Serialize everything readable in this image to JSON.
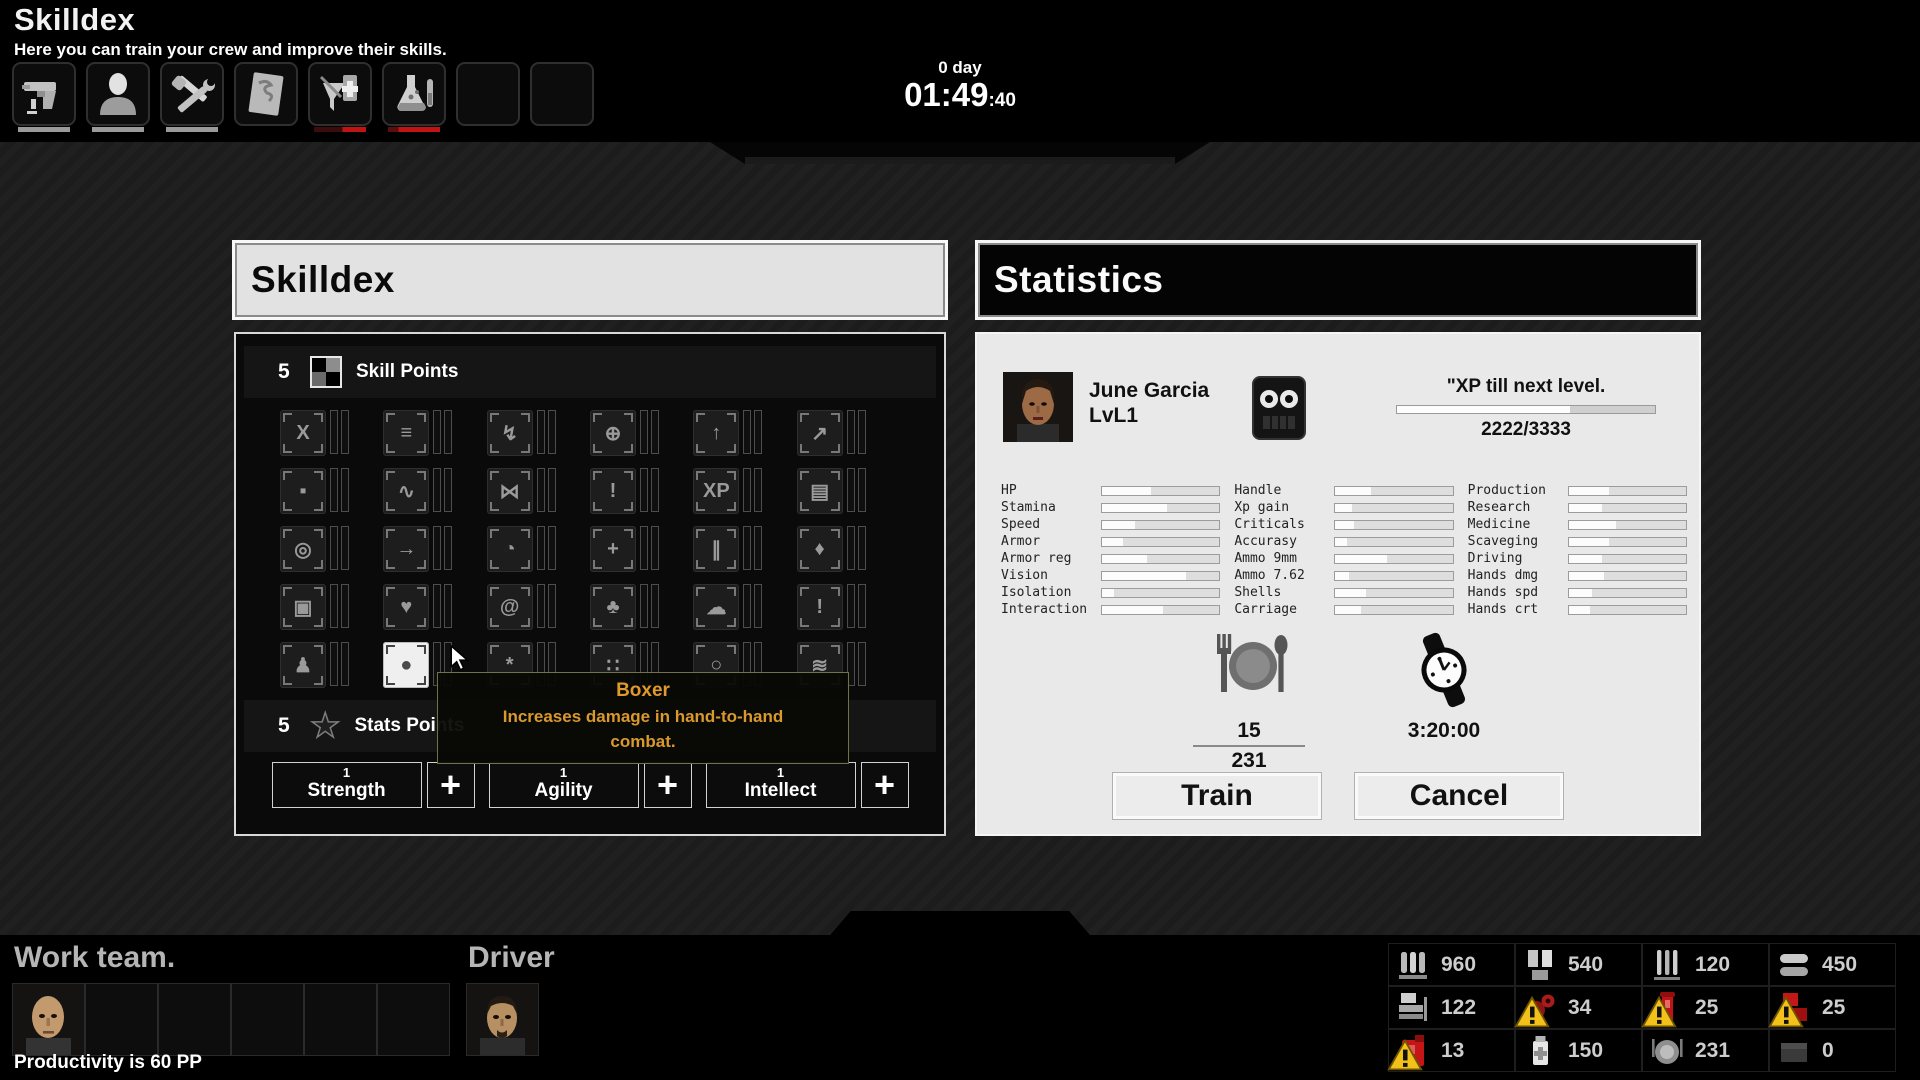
{
  "page": {
    "title": "Skilldex",
    "subtitle": "Here you can train your crew and improve their skills."
  },
  "clock": {
    "day": "0 day",
    "time": "01:49",
    "seconds": ":40"
  },
  "toolbar": {
    "slots": [
      "weapons",
      "crew",
      "workshop",
      "map",
      "medical",
      "chemistry",
      "empty-1",
      "empty-2"
    ]
  },
  "skilldex": {
    "title": "Skilldex",
    "skill_points": {
      "value": "5",
      "label": "Skill Points"
    },
    "stats_points": {
      "value": "5",
      "label": "Stats Points"
    },
    "tiles": [
      {
        "name": "muscle",
        "glyph": "X",
        "hovered": false
      },
      {
        "name": "stack",
        "glyph": "≡",
        "hovered": false
      },
      {
        "name": "sprint",
        "glyph": "↯",
        "hovered": false
      },
      {
        "name": "scope",
        "glyph": "⊕",
        "hovered": false
      },
      {
        "name": "climb",
        "glyph": "↑",
        "hovered": false
      },
      {
        "name": "throw",
        "glyph": "↗",
        "hovered": false
      },
      {
        "name": "melee",
        "glyph": "▪",
        "hovered": false
      },
      {
        "name": "whip",
        "glyph": "∿",
        "hovered": false
      },
      {
        "name": "wrestling",
        "glyph": "⋈",
        "hovered": false
      },
      {
        "name": "alert",
        "glyph": "!",
        "hovered": false
      },
      {
        "name": "xp-gain",
        "glyph": "XP",
        "hovered": false
      },
      {
        "name": "supply",
        "glyph": "▤",
        "hovered": false
      },
      {
        "name": "focus",
        "glyph": "◎",
        "hovered": false
      },
      {
        "name": "dash",
        "glyph": "→",
        "hovered": false
      },
      {
        "name": "reaction",
        "glyph": "◔",
        "hovered": false
      },
      {
        "name": "medic",
        "glyph": "+",
        "hovered": false
      },
      {
        "name": "dual-wield",
        "glyph": "∥",
        "hovered": false
      },
      {
        "name": "chemistry",
        "glyph": "♦",
        "hovered": false
      },
      {
        "name": "shield",
        "glyph": "▣",
        "hovered": false
      },
      {
        "name": "heart",
        "glyph": "♥",
        "hovered": false
      },
      {
        "name": "spiral",
        "glyph": "@",
        "hovered": false
      },
      {
        "name": "nature",
        "glyph": "♣",
        "hovered": false
      },
      {
        "name": "mind",
        "glyph": "☁",
        "hovered": false
      },
      {
        "name": "danger",
        "glyph": "!",
        "hovered": false
      },
      {
        "name": "scout",
        "glyph": "♟",
        "hovered": false
      },
      {
        "name": "boxer",
        "glyph": "●",
        "hovered": true
      },
      {
        "name": "craft",
        "glyph": "*",
        "hovered": false
      },
      {
        "name": "domino",
        "glyph": "∷",
        "hovered": false
      },
      {
        "name": "endurance",
        "glyph": "○",
        "hovered": false
      },
      {
        "name": "camouflage",
        "glyph": "≋",
        "hovered": false
      }
    ],
    "attributes": [
      {
        "value": "1",
        "label": "Strength"
      },
      {
        "value": "1",
        "label": "Agility"
      },
      {
        "value": "1",
        "label": "Intellect"
      }
    ],
    "plus": "+"
  },
  "tooltip": {
    "title": "Boxer",
    "line1": "Increases damage in hand-to-hand",
    "line2": "combat."
  },
  "statistics": {
    "title": "Statistics",
    "character": {
      "name": "June Garcia",
      "level": "LvL1"
    },
    "xp": {
      "label": "\"XP till next level.",
      "value": "2222/3333",
      "percent": 67
    },
    "columns": [
      [
        {
          "label": "HP",
          "pct": 42
        },
        {
          "label": "Stamina",
          "pct": 55
        },
        {
          "label": "Speed",
          "pct": 28
        },
        {
          "label": "Armor",
          "pct": 18
        },
        {
          "label": "Armor reg",
          "pct": 38
        },
        {
          "label": "Vision",
          "pct": 72
        },
        {
          "label": "Isolation",
          "pct": 10
        },
        {
          "label": "Interaction",
          "pct": 52
        }
      ],
      [
        {
          "label": "Handle",
          "pct": 30
        },
        {
          "label": "Xp gain",
          "pct": 14
        },
        {
          "label": "Criticals",
          "pct": 16
        },
        {
          "label": "Accurasy",
          "pct": 10
        },
        {
          "label": "Ammo 9mm",
          "pct": 44
        },
        {
          "label": "Ammo 7.62",
          "pct": 12
        },
        {
          "label": "Shells",
          "pct": 26
        },
        {
          "label": "Carriage",
          "pct": 22
        }
      ],
      [
        {
          "label": "Production",
          "pct": 34
        },
        {
          "label": "Research",
          "pct": 28
        },
        {
          "label": "Medicine",
          "pct": 40
        },
        {
          "label": "Scaveging",
          "pct": 34
        },
        {
          "label": "Driving",
          "pct": 28
        },
        {
          "label": "Hands dmg",
          "pct": 30
        },
        {
          "label": "Hands spd",
          "pct": 20
        },
        {
          "label": "Hands crt",
          "pct": 18
        }
      ]
    ],
    "food": {
      "current": "15",
      "total": "231"
    },
    "duration": "3:20:00",
    "buttons": {
      "train": "Train",
      "cancel": "Cancel"
    }
  },
  "bottom": {
    "work_team": {
      "title": "Work team.",
      "productivity": "Productivity is 60 PP"
    },
    "driver": {
      "title": "Driver"
    },
    "resources": [
      {
        "icon": "ammo-9mm",
        "value": "960",
        "warning": false
      },
      {
        "icon": "pistol-mags",
        "value": "540",
        "warning": false
      },
      {
        "icon": "rifle-rounds",
        "value": "120",
        "warning": false
      },
      {
        "icon": "ammo-belts",
        "value": "450",
        "warning": false
      },
      {
        "icon": "workbench",
        "value": "122",
        "warning": false
      },
      {
        "icon": "gears",
        "value": "34",
        "warning": true
      },
      {
        "icon": "fuel",
        "value": "25",
        "warning": true
      },
      {
        "icon": "materials",
        "value": "25",
        "warning": true
      },
      {
        "icon": "canister",
        "value": "13",
        "warning": true
      },
      {
        "icon": "medicine",
        "value": "150",
        "warning": false
      },
      {
        "icon": "rations",
        "value": "231",
        "warning": false
      },
      {
        "icon": "storage",
        "value": "0",
        "warning": false
      }
    ]
  }
}
